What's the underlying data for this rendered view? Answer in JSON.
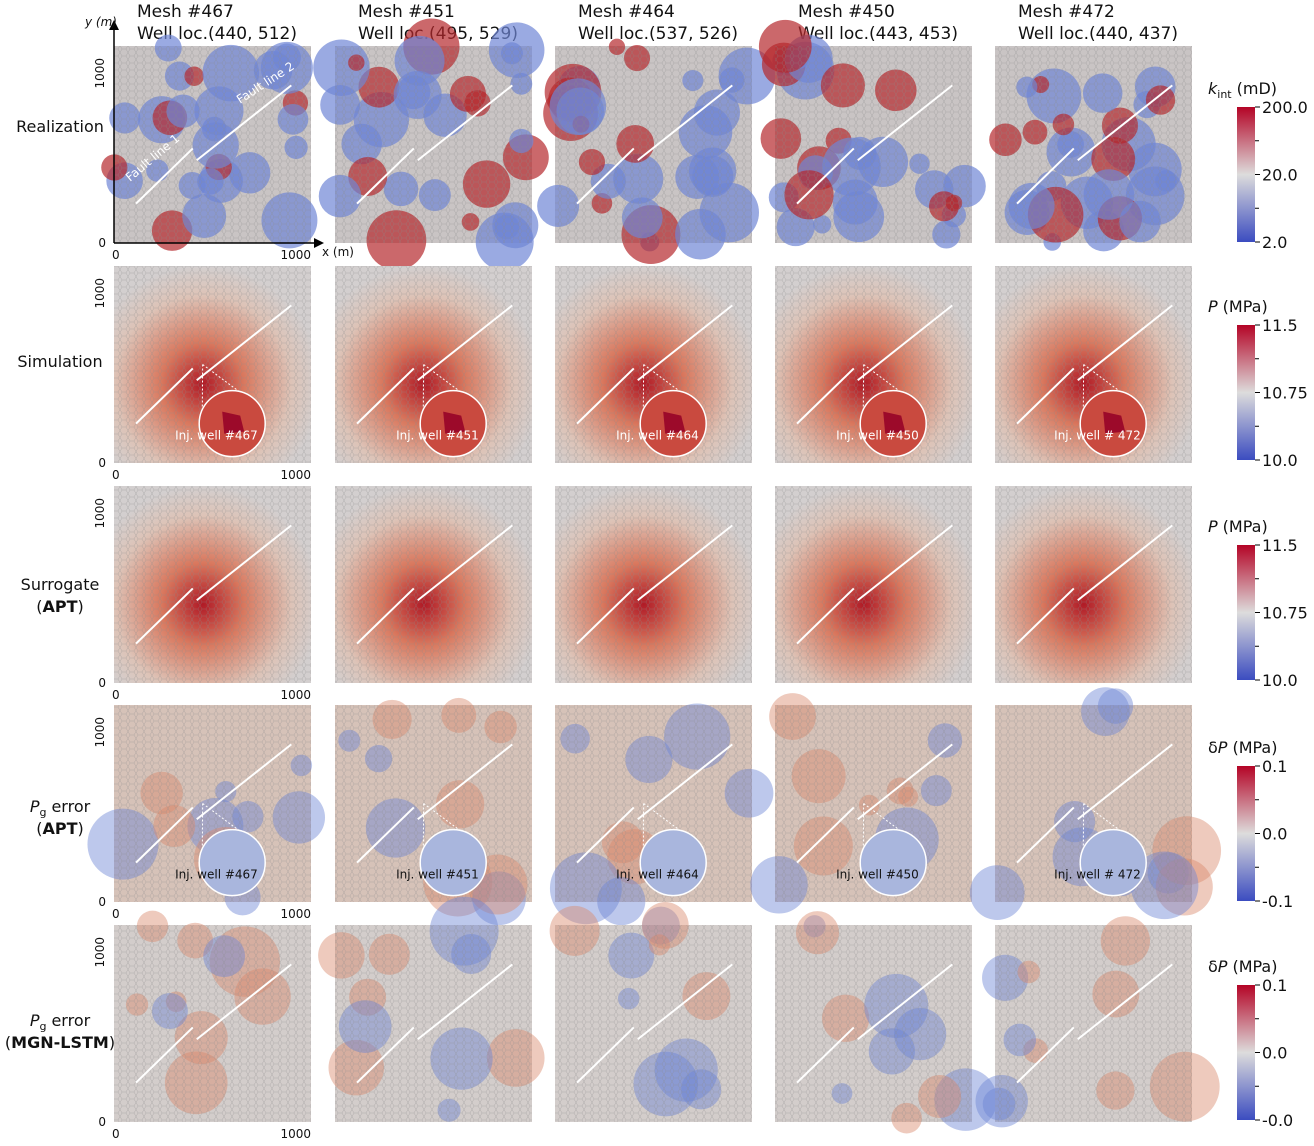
{
  "columns": [
    {
      "mesh": "Mesh #467",
      "well": "Well loc.(440, 512)",
      "inj": "Inj. well #467"
    },
    {
      "mesh": "Mesh #451",
      "well": "Well loc.(495, 529)",
      "inj": "Inj. well #451"
    },
    {
      "mesh": "Mesh #464",
      "well": "Well loc.(537, 526)",
      "inj": "Inj. well #464"
    },
    {
      "mesh": "Mesh #450",
      "well": "Well loc.(443, 453)",
      "inj": "Inj. well #450"
    },
    {
      "mesh": "Mesh #472",
      "well": "Well loc.(440, 437)",
      "inj": "Inj. well # 472"
    }
  ],
  "rows": [
    {
      "label": "Realization"
    },
    {
      "label": "Simulation"
    },
    {
      "label": "Surrogate",
      "method": "APT"
    },
    {
      "symbol": "P",
      "subscript": "g",
      "label": "error",
      "method": "APT"
    },
    {
      "symbol": "P",
      "subscript": "g",
      "label": "error",
      "method": "MGN-LSTM"
    }
  ],
  "axis": {
    "y_label": "y (m)",
    "x_label": "x (m)",
    "max": "1000",
    "zero": "0"
  },
  "annotations": {
    "fault1": "Fault line 1",
    "fault2": "Fault line 2"
  },
  "colorbars": [
    {
      "prefix": "",
      "symbol": "k",
      "subscript": "int",
      "unit": "(mD)",
      "ticks": [
        "200.0",
        "20.0",
        "2.0"
      ]
    },
    {
      "prefix": "",
      "symbol": "P",
      "subscript": "",
      "unit": "(MPa)",
      "ticks": [
        "11.5",
        "10.75",
        "10.0"
      ]
    },
    {
      "prefix": "",
      "symbol": "P",
      "subscript": "",
      "unit": "(MPa)",
      "ticks": [
        "11.5",
        "10.75",
        "10.0"
      ]
    },
    {
      "prefix": "δ",
      "symbol": "P",
      "subscript": "",
      "unit": "(MPa)",
      "ticks": [
        "0.1",
        "0.0",
        "-0.1"
      ]
    },
    {
      "prefix": "δ",
      "symbol": "P",
      "subscript": "",
      "unit": "(MPa)",
      "ticks": [
        "0.1",
        "0.0",
        "-0.0"
      ]
    }
  ]
}
